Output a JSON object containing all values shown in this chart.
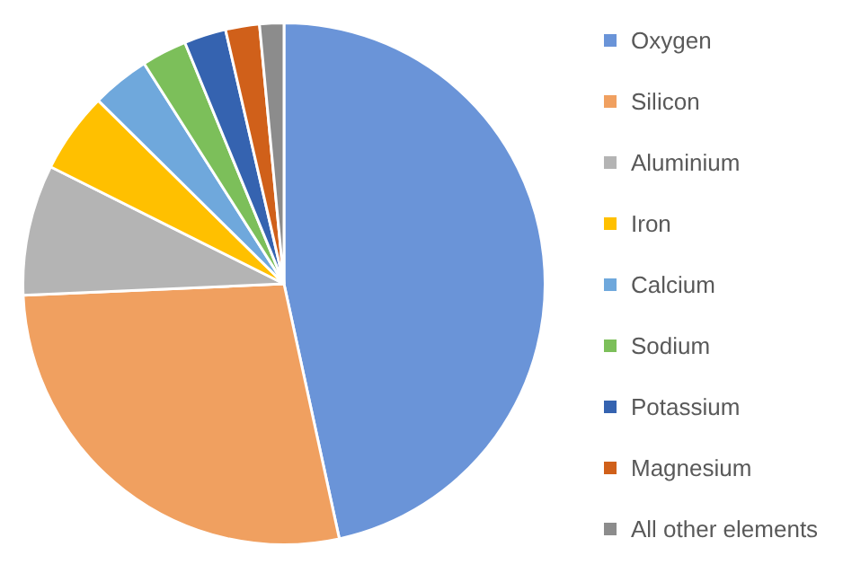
{
  "chart_data": {
    "type": "pie",
    "categories": [
      "Oxygen",
      "Silicon",
      "Aluminium",
      "Iron",
      "Calcium",
      "Sodium",
      "Potassium",
      "Magnesium",
      "All other elements"
    ],
    "values": [
      46.6,
      27.7,
      8.1,
      5.0,
      3.6,
      2.8,
      2.6,
      2.1,
      1.5
    ],
    "colors": [
      "#6a94d8",
      "#f0a060",
      "#b4b4b4",
      "#ffc000",
      "#6fa8dc",
      "#7cbf5a",
      "#3563b0",
      "#d0601a",
      "#8c8c8c"
    ],
    "legend": "right"
  }
}
